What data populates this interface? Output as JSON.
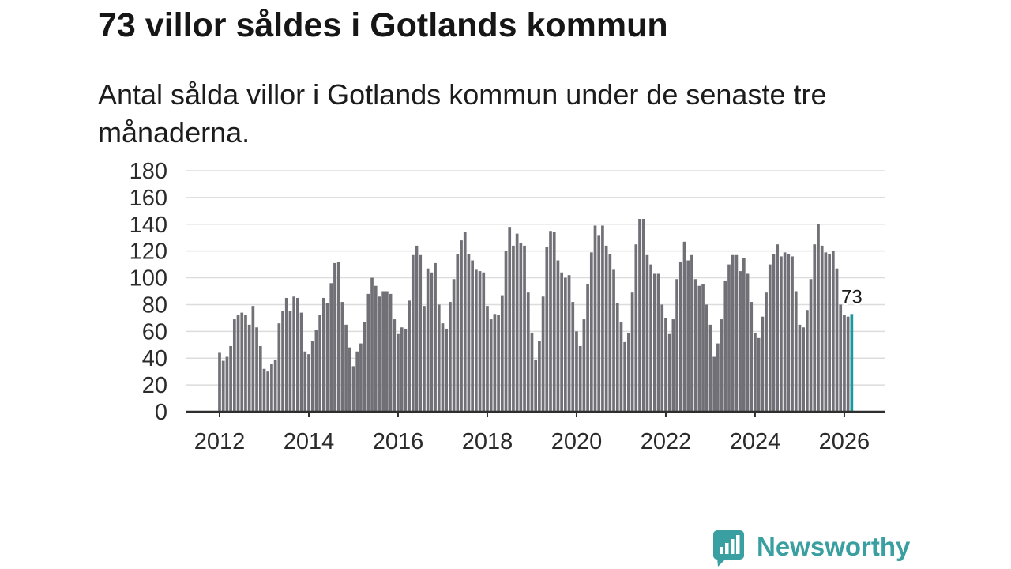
{
  "chart_data": {
    "type": "bar",
    "title": "73 villor såldes i Gotlands kommun",
    "subtitle": "Antal sålda villor i Gotlands kommun under de senaste tre månaderna.",
    "start_year": 2012,
    "start_month": 1,
    "values": [
      44,
      38,
      41,
      49,
      69,
      72,
      74,
      72,
      65,
      79,
      63,
      49,
      32,
      30,
      36,
      39,
      66,
      75,
      85,
      75,
      86,
      85,
      74,
      45,
      43,
      53,
      61,
      72,
      85,
      81,
      96,
      111,
      112,
      82,
      65,
      48,
      34,
      45,
      51,
      67,
      88,
      100,
      94,
      86,
      90,
      90,
      88,
      69,
      58,
      63,
      62,
      83,
      117,
      124,
      117,
      79,
      107,
      104,
      111,
      80,
      66,
      62,
      82,
      99,
      118,
      128,
      134,
      118,
      113,
      106,
      105,
      104,
      79,
      69,
      73,
      72,
      87,
      120,
      138,
      124,
      133,
      126,
      124,
      89,
      59,
      39,
      53,
      86,
      123,
      135,
      134,
      113,
      104,
      100,
      102,
      82,
      60,
      49,
      69,
      95,
      119,
      139,
      132,
      139,
      124,
      118,
      106,
      81,
      67,
      52,
      59,
      89,
      125,
      144,
      144,
      117,
      110,
      103,
      103,
      80,
      70,
      58,
      69,
      99,
      112,
      127,
      113,
      117,
      99,
      94,
      95,
      80,
      65,
      41,
      51,
      69,
      98,
      110,
      117,
      117,
      105,
      115,
      103,
      82,
      59,
      55,
      71,
      89,
      110,
      118,
      125,
      116,
      119,
      118,
      116,
      90,
      65,
      63,
      76,
      99,
      125,
      140,
      124,
      119,
      118,
      120,
      107,
      80,
      72,
      71,
      73
    ],
    "ylim": [
      0,
      180
    ],
    "y_ticks": [
      "0",
      "20",
      "40",
      "60",
      "80",
      "100",
      "120",
      "140",
      "160",
      "180"
    ],
    "x_ticks": [
      "2012",
      "2014",
      "2016",
      "2018",
      "2020",
      "2022",
      "2024",
      "2026"
    ],
    "highlight_label": "73",
    "grid": true,
    "colors": {
      "bar": "#717076",
      "highlight": "#1a9a9c",
      "grid": "#dcdcdc",
      "axis": "#2e2e2e"
    }
  },
  "logo": {
    "text": "Newsworthy",
    "color": "#3a9fa0"
  }
}
